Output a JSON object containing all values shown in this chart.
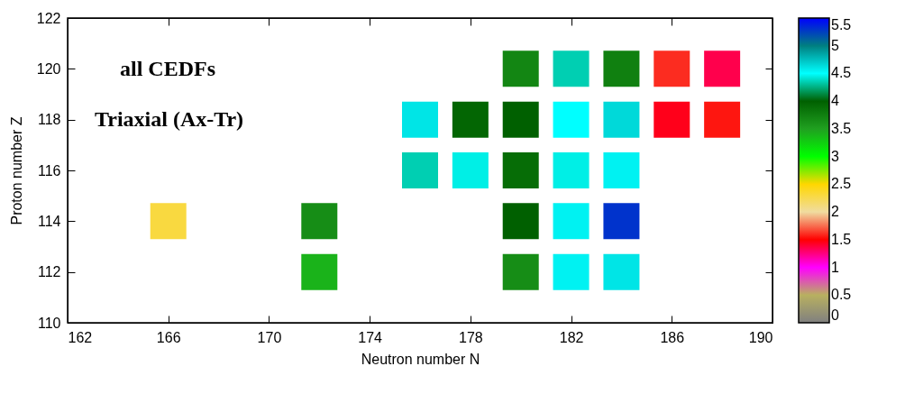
{
  "chart_data": {
    "type": "scatter",
    "xlabel": "Neutron number  N",
    "ylabel": "Proton number  Z",
    "annotations": [
      "all CEDFs",
      "Triaxial (Ax-Tr)"
    ],
    "marker": "square",
    "grid": false,
    "xlim": [
      162,
      190
    ],
    "xticks": [
      162,
      166,
      170,
      174,
      178,
      182,
      186,
      190
    ],
    "ylim": [
      110,
      122
    ],
    "yticks": [
      110,
      112,
      114,
      116,
      118,
      120,
      122
    ],
    "clim": [
      0,
      5.5
    ],
    "cticks": [
      0,
      0.5,
      1,
      1.5,
      2,
      2.5,
      3,
      3.5,
      4,
      4.5,
      5,
      5.5
    ],
    "series": [
      {
        "x": [
          180,
          182,
          184,
          186,
          188,
          176,
          178,
          180,
          182,
          184,
          186,
          188,
          176,
          178,
          180,
          182,
          184,
          166,
          172,
          180,
          182,
          184,
          172,
          180,
          182,
          184
        ],
        "values": [
          120,
          120,
          120,
          120,
          120,
          118,
          118,
          118,
          118,
          118,
          118,
          118,
          116,
          116,
          116,
          116,
          116,
          114,
          114,
          114,
          114,
          114,
          112,
          112,
          112,
          112
        ],
        "cvalues": [
          3.7,
          4.35,
          3.75,
          1.6,
          1.35,
          4.6,
          3.95,
          4.0,
          4.5,
          4.65,
          1.45,
          1.55,
          4.35,
          4.45,
          3.9,
          4.45,
          4.55,
          2.3,
          3.65,
          4.0,
          4.55,
          5.3,
          3.4,
          3.65,
          4.55,
          4.6
        ]
      }
    ]
  }
}
